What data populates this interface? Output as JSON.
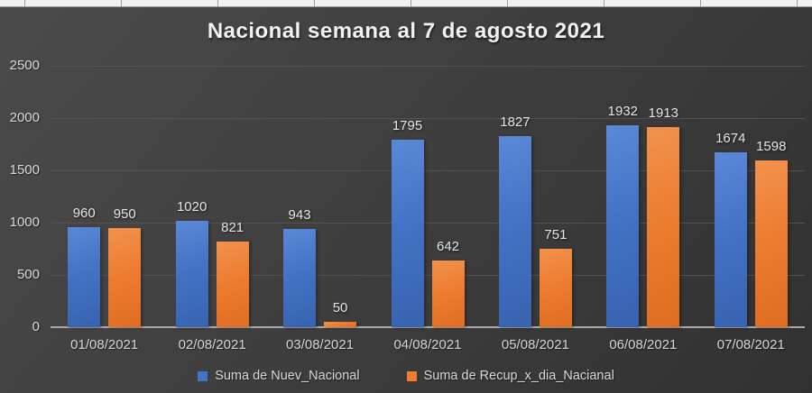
{
  "chart_data": {
    "type": "bar",
    "title": "Nacional semana al 7 de agosto 2021",
    "categories": [
      "01/08/2021",
      "02/08/2021",
      "03/08/2021",
      "04/08/2021",
      "05/08/2021",
      "06/08/2021",
      "07/08/2021"
    ],
    "series": [
      {
        "name": "Suma de Nuev_Nacional",
        "color": "#4472c4",
        "values": [
          960,
          1020,
          943,
          1795,
          1827,
          1932,
          1674
        ]
      },
      {
        "name": "Suma de Recup_x_dia_Nacianal",
        "color": "#ed7d31",
        "values": [
          950,
          821,
          50,
          642,
          751,
          1913,
          1598
        ]
      }
    ],
    "y_axis": {
      "min": 0,
      "max": 2500,
      "step": 500,
      "tick_labels": [
        "0",
        "500",
        "1000",
        "1500",
        "2000",
        "2500"
      ]
    },
    "grid": true,
    "legend_position": "bottom",
    "style": {
      "background": "#3f3f3f",
      "text_color": "#d9d9d9",
      "title_color": "#f2f2f2",
      "gridline_color": "#525252",
      "axis_color": "#a9a9a9"
    }
  }
}
